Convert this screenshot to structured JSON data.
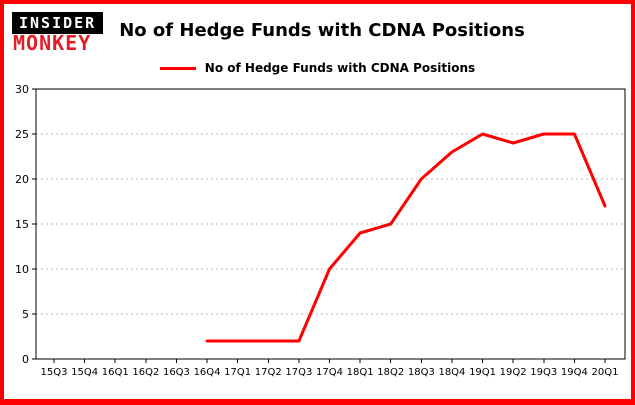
{
  "logo": {
    "line1": "INSIDER",
    "line2": "MONKEY"
  },
  "title": "No of Hedge Funds with CDNA Positions",
  "legend": {
    "label": "No of Hedge Funds with CDNA Positions"
  },
  "colors": {
    "accent": "#ff0000",
    "logo_red": "#e41e26",
    "frame": "#ff0000",
    "grid": "#b8b8b8",
    "axis": "#000000"
  },
  "chart_data": {
    "type": "line",
    "title": "No of Hedge Funds with CDNA Positions",
    "categories": [
      "15Q3",
      "15Q4",
      "16Q1",
      "16Q2",
      "16Q3",
      "16Q4",
      "17Q1",
      "17Q2",
      "17Q3",
      "17Q4",
      "18Q1",
      "18Q2",
      "18Q3",
      "18Q4",
      "19Q1",
      "19Q2",
      "19Q3",
      "19Q4",
      "20Q1"
    ],
    "series": [
      {
        "name": "No of Hedge Funds with CDNA Positions",
        "color": "#ff0000",
        "values": [
          null,
          null,
          null,
          null,
          null,
          2,
          2,
          2,
          2,
          10,
          14,
          15,
          20,
          23,
          25,
          24,
          25,
          25,
          17
        ]
      }
    ],
    "xlabel": "",
    "ylabel": "",
    "ylim": [
      0,
      30
    ],
    "yticks": [
      0,
      5,
      10,
      15,
      20,
      25,
      30
    ],
    "grid": "horizontal-dashed",
    "legend_position": "top-center"
  }
}
